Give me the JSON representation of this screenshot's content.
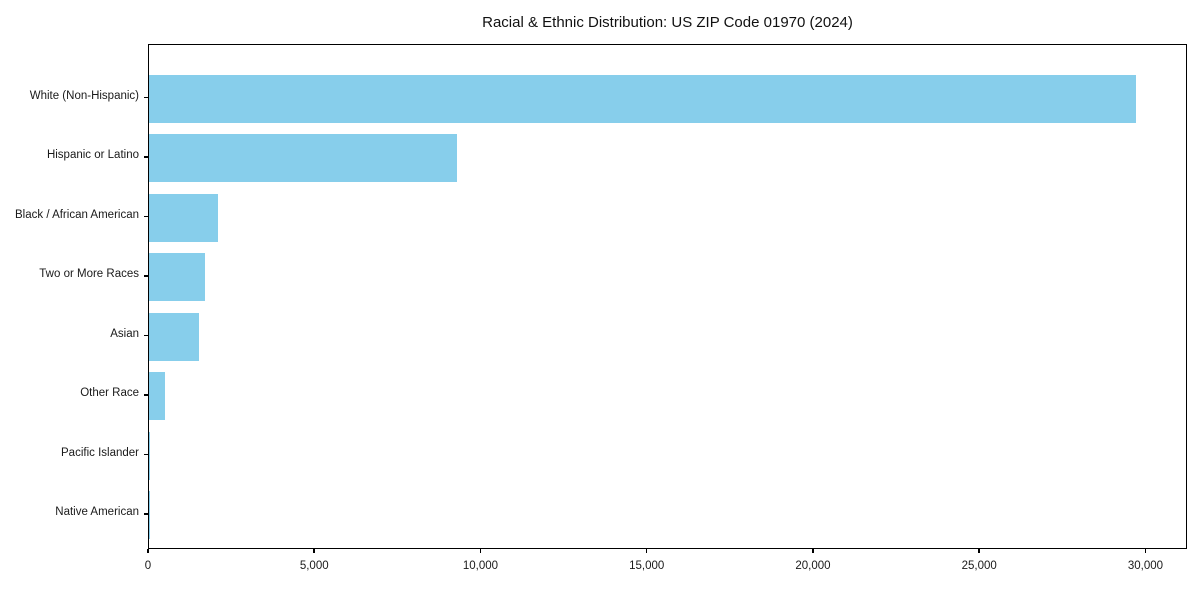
{
  "chart_data": {
    "type": "bar",
    "orientation": "horizontal",
    "title": "Racial & Ethnic Distribution: US ZIP Code 01970 (2024)",
    "categories": [
      "White (Non-Hispanic)",
      "Hispanic or Latino",
      "Black / African American",
      "Two or More Races",
      "Asian",
      "Other Race",
      "Pacific Islander",
      "Native American"
    ],
    "values": [
      29750,
      9290,
      2070,
      1680,
      1500,
      470,
      30,
      12
    ],
    "xlabel": "",
    "ylabel": "",
    "xlim": [
      0,
      31250
    ],
    "xticks": [
      0,
      5000,
      10000,
      15000,
      20000,
      25000,
      30000
    ],
    "xtick_labels": [
      "0",
      "5,000",
      "10,000",
      "15,000",
      "20,000",
      "25,000",
      "30,000"
    ],
    "grid": false,
    "legend": null,
    "colors": {
      "bar": "#87CEEB",
      "axis": "#000000",
      "text": "#1a1a1a",
      "background": "#ffffff"
    }
  }
}
